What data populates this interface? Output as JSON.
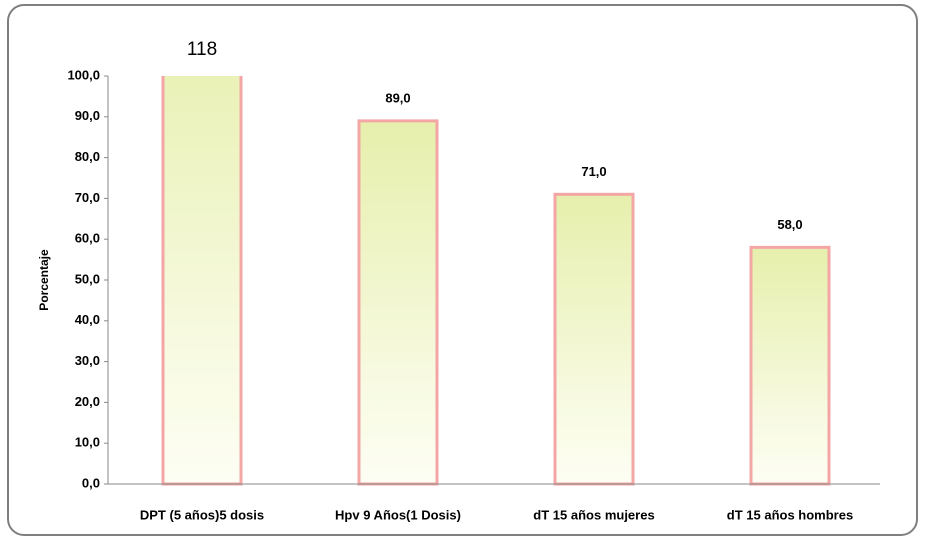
{
  "chart_data": {
    "type": "bar",
    "y_label": "Porcentaje",
    "categories": [
      "DPT (5 años)5 dosis",
      "Hpv 9 Años(1 Dosis)",
      "dT 15 años mujeres",
      "dT 15 años hombres"
    ],
    "values": [
      118,
      89,
      71,
      58
    ],
    "value_labels": [
      "118",
      "89,0",
      "71,0",
      "58,0"
    ],
    "ylim": [
      0,
      100
    ],
    "yticks": [
      {
        "value": 0,
        "label": "0,0"
      },
      {
        "value": 10,
        "label": "10,0"
      },
      {
        "value": 20,
        "label": "20,0"
      },
      {
        "value": 30,
        "label": "30,0"
      },
      {
        "value": 40,
        "label": "40,0"
      },
      {
        "value": 50,
        "label": "50,0"
      },
      {
        "value": 60,
        "label": "60,0"
      },
      {
        "value": 70,
        "label": "70,0"
      },
      {
        "value": 80,
        "label": "80,0"
      },
      {
        "value": 90,
        "label": "90,0"
      },
      {
        "value": 100,
        "label": "100,0"
      }
    ],
    "color": "#f4a6a6"
  }
}
